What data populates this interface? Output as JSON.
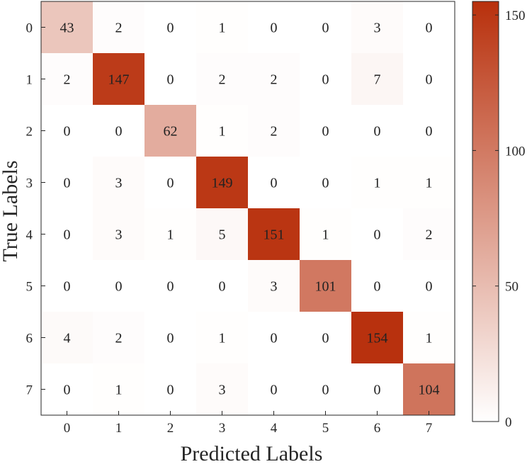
{
  "chart_data": {
    "type": "heatmap",
    "title": "",
    "xlabel": "Predicted Labels",
    "ylabel": "True Labels",
    "x_categories": [
      "0",
      "1",
      "2",
      "3",
      "4",
      "5",
      "6",
      "7"
    ],
    "y_categories": [
      "0",
      "1",
      "2",
      "3",
      "4",
      "5",
      "6",
      "7"
    ],
    "values": [
      [
        43,
        2,
        0,
        1,
        0,
        0,
        3,
        0
      ],
      [
        2,
        147,
        0,
        2,
        2,
        0,
        7,
        0
      ],
      [
        0,
        0,
        62,
        1,
        2,
        0,
        0,
        0
      ],
      [
        0,
        3,
        0,
        149,
        0,
        0,
        1,
        1
      ],
      [
        0,
        3,
        1,
        5,
        151,
        1,
        0,
        2
      ],
      [
        0,
        0,
        0,
        0,
        3,
        101,
        0,
        0
      ],
      [
        4,
        2,
        0,
        1,
        0,
        0,
        154,
        1
      ],
      [
        0,
        1,
        0,
        3,
        0,
        0,
        0,
        104
      ]
    ],
    "colorbar": {
      "range": [
        0,
        155
      ],
      "ticks": [
        0,
        50,
        100,
        150
      ],
      "color_low": "#ffffff",
      "color_high": "#b8300c"
    },
    "grid": false
  }
}
